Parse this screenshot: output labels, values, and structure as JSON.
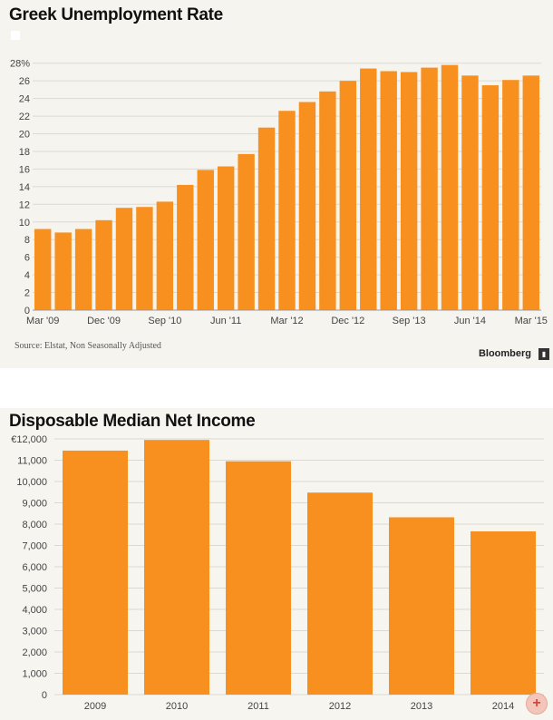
{
  "chart_data": [
    {
      "type": "bar",
      "title": "Greek Unemployment Rate",
      "categories": [
        "Mar '09",
        "Jun '09",
        "Sep '09",
        "Dec '09",
        "Mar '10",
        "Jun '10",
        "Sep '10",
        "Dec '10",
        "Mar '11",
        "Jun '11",
        "Sep '11",
        "Dec '11",
        "Mar '12",
        "Jun '12",
        "Sep '12",
        "Dec '12",
        "Mar '13",
        "Jun '13",
        "Sep '13",
        "Dec '13",
        "Mar '14",
        "Jun '14",
        "Sep '14",
        "Dec '14",
        "Mar '15"
      ],
      "values": [
        9.2,
        8.8,
        9.2,
        10.2,
        11.6,
        11.7,
        12.3,
        14.2,
        15.9,
        16.3,
        17.7,
        20.7,
        22.6,
        23.6,
        24.8,
        26.0,
        27.4,
        27.1,
        27.0,
        27.5,
        27.8,
        26.6,
        25.5,
        26.1,
        26.6
      ],
      "tick_labels": [
        "Mar '09",
        "Dec '09",
        "Sep '10",
        "Jun '11",
        "Mar '12",
        "Dec '12",
        "Sep '13",
        "Jun '14",
        "Mar '15"
      ],
      "y_ticks": [
        "0",
        "2",
        "4",
        "6",
        "8",
        "10",
        "12",
        "14",
        "16",
        "18",
        "20",
        "22",
        "24",
        "26",
        "28%"
      ],
      "ylim": [
        0,
        29
      ],
      "grid": true,
      "bar_color": "#f7901e",
      "source": "Source: Elstat, Non Seasonally Adjusted",
      "brand": "Bloomberg"
    },
    {
      "type": "bar",
      "title": "Disposable Median Net Income",
      "categories": [
        "2009",
        "2010",
        "2011",
        "2012",
        "2013",
        "2014"
      ],
      "values": [
        11450,
        11950,
        10950,
        9480,
        8320,
        7660
      ],
      "y_ticks": [
        "0",
        "1,000",
        "2,000",
        "3,000",
        "4,000",
        "5,000",
        "6,000",
        "7,000",
        "8,000",
        "9,000",
        "10,000",
        "11,000",
        "€12,000"
      ],
      "ylim": [
        0,
        12000
      ],
      "grid": true,
      "bar_color": "#f7901e"
    }
  ],
  "icons": {
    "brand_icon": "bloomberg-icon",
    "zoom": "zoom-in-icon",
    "zoom_glyph": "+"
  }
}
